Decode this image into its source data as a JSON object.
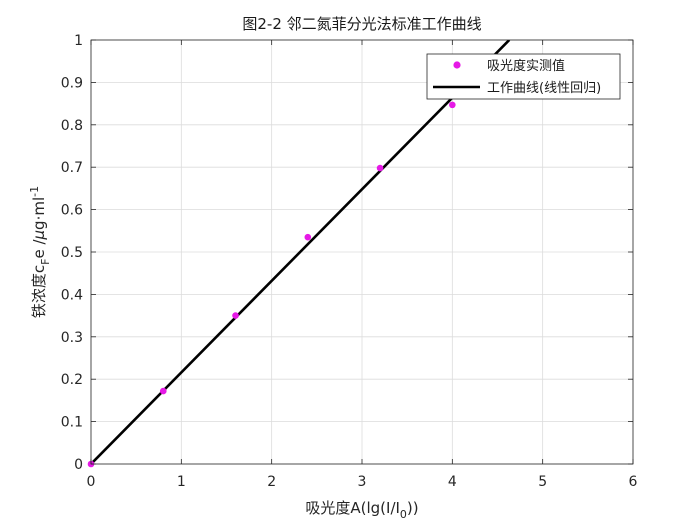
{
  "chart_data": {
    "type": "scatter",
    "title": "图2-2 邻二氮菲分光法标准工作曲线",
    "xlabel": {
      "prefix": "吸光度A(lg(I/I",
      "sub": "0",
      "suffix": "))"
    },
    "ylabel": {
      "prefix": "铁浓度c",
      "sub": "F",
      "mid": "e /",
      "mu": "μ",
      "suffix": "g·ml",
      "sup": "-1"
    },
    "xlim": [
      0,
      6
    ],
    "ylim": [
      0,
      1
    ],
    "x_ticks": [
      "0",
      "1",
      "2",
      "3",
      "4",
      "5",
      "6"
    ],
    "y_ticks": [
      "0",
      "0.1",
      "0.2",
      "0.3",
      "0.4",
      "0.5",
      "0.6",
      "0.7",
      "0.8",
      "0.9",
      "1"
    ],
    "grid": true,
    "legend_position": "top-right",
    "series": [
      {
        "name": "吸光度实测值",
        "kind": "scatter",
        "color": "#e619e6",
        "x": [
          0,
          0.8,
          1.6,
          2.4,
          3.2,
          4.0
        ],
        "y": [
          0,
          0.172,
          0.35,
          0.535,
          0.698,
          0.847
        ]
      },
      {
        "name": "工作曲线(线性回归)",
        "kind": "line",
        "color": "#000000",
        "x": [
          0,
          4.63
        ],
        "y": [
          0,
          1.0
        ]
      }
    ]
  }
}
